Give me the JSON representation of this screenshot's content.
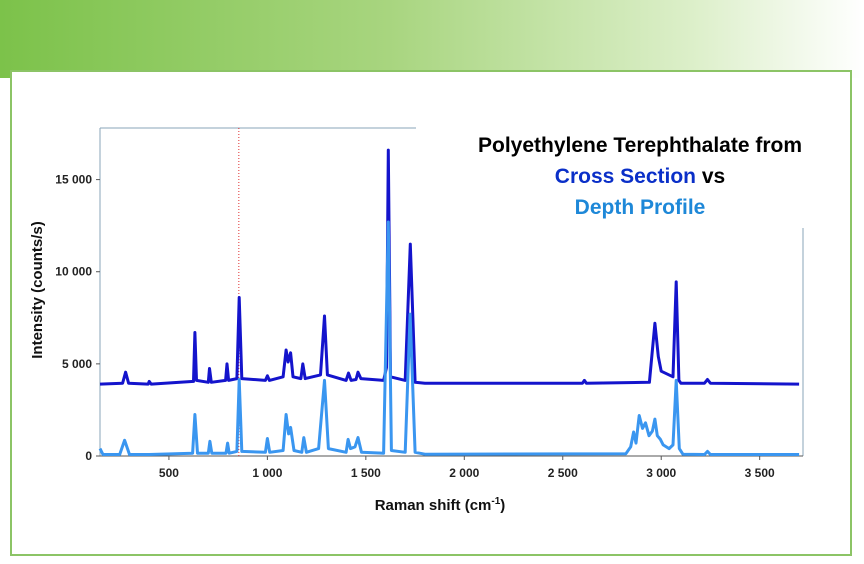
{
  "chart_data": {
    "type": "line",
    "title_line1": "Polyethylene Terephthalate from",
    "title_cross": "Cross Section",
    "title_vs": " vs",
    "title_depth": "Depth Profile",
    "xlabel": "Raman shift (cm",
    "xlabel_sup": "-1",
    "xlabel_end": ")",
    "ylabel": "Intensity (counts/s)",
    "xlim": [
      150,
      3720
    ],
    "ylim": [
      0,
      17800
    ],
    "x_ticks": [
      500,
      1000,
      1500,
      2000,
      2500,
      3000,
      3500
    ],
    "x_tick_labels": [
      "500",
      "1 000",
      "1 500",
      "2 000",
      "2 500",
      "3 000",
      "3 500"
    ],
    "y_ticks": [
      0,
      5000,
      10000,
      15000
    ],
    "y_tick_labels": [
      "0",
      "5 000",
      "10 000",
      "15 000"
    ],
    "marker_line_x": 855,
    "series": [
      {
        "name": "Cross Section",
        "color": "#1414cc",
        "baseline": 3900,
        "points": [
          [
            150,
            3900
          ],
          [
            265,
            3950
          ],
          [
            280,
            4550
          ],
          [
            295,
            3950
          ],
          [
            395,
            3900
          ],
          [
            400,
            4050
          ],
          [
            410,
            3900
          ],
          [
            625,
            4050
          ],
          [
            632,
            6700
          ],
          [
            640,
            4100
          ],
          [
            700,
            4000
          ],
          [
            706,
            4750
          ],
          [
            715,
            4000
          ],
          [
            788,
            4100
          ],
          [
            795,
            5000
          ],
          [
            803,
            4100
          ],
          [
            845,
            4200
          ],
          [
            857,
            8600
          ],
          [
            870,
            4200
          ],
          [
            990,
            4100
          ],
          [
            1000,
            4350
          ],
          [
            1010,
            4100
          ],
          [
            1080,
            4300
          ],
          [
            1095,
            5750
          ],
          [
            1105,
            5100
          ],
          [
            1118,
            5600
          ],
          [
            1130,
            4300
          ],
          [
            1170,
            4200
          ],
          [
            1180,
            5000
          ],
          [
            1192,
            4200
          ],
          [
            1270,
            4400
          ],
          [
            1290,
            7600
          ],
          [
            1305,
            4400
          ],
          [
            1400,
            4100
          ],
          [
            1412,
            4500
          ],
          [
            1425,
            4100
          ],
          [
            1450,
            4150
          ],
          [
            1460,
            4550
          ],
          [
            1475,
            4200
          ],
          [
            1590,
            4100
          ],
          [
            1605,
            4800
          ],
          [
            1614,
            16600
          ],
          [
            1625,
            4300
          ],
          [
            1700,
            4100
          ],
          [
            1726,
            11500
          ],
          [
            1750,
            4000
          ],
          [
            1800,
            3950
          ],
          [
            2600,
            3950
          ],
          [
            2610,
            4100
          ],
          [
            2620,
            3950
          ],
          [
            2940,
            4000
          ],
          [
            2968,
            7200
          ],
          [
            2985,
            5400
          ],
          [
            3000,
            4600
          ],
          [
            3060,
            4300
          ],
          [
            3076,
            9450
          ],
          [
            3090,
            4100
          ],
          [
            3100,
            3950
          ],
          [
            3220,
            3950
          ],
          [
            3235,
            4150
          ],
          [
            3250,
            3950
          ],
          [
            3700,
            3900
          ]
        ]
      },
      {
        "name": "Depth Profile",
        "color": "#3a96f0",
        "baseline": 0,
        "points": [
          [
            150,
            400
          ],
          [
            165,
            80
          ],
          [
            250,
            80
          ],
          [
            275,
            850
          ],
          [
            300,
            80
          ],
          [
            400,
            80
          ],
          [
            620,
            150
          ],
          [
            632,
            2250
          ],
          [
            645,
            150
          ],
          [
            700,
            150
          ],
          [
            708,
            800
          ],
          [
            718,
            150
          ],
          [
            790,
            150
          ],
          [
            798,
            700
          ],
          [
            806,
            150
          ],
          [
            845,
            250
          ],
          [
            857,
            4150
          ],
          [
            870,
            250
          ],
          [
            990,
            200
          ],
          [
            1000,
            950
          ],
          [
            1012,
            200
          ],
          [
            1080,
            300
          ],
          [
            1095,
            2250
          ],
          [
            1108,
            1200
          ],
          [
            1118,
            1550
          ],
          [
            1135,
            300
          ],
          [
            1175,
            200
          ],
          [
            1185,
            1000
          ],
          [
            1198,
            200
          ],
          [
            1260,
            400
          ],
          [
            1290,
            4100
          ],
          [
            1310,
            400
          ],
          [
            1400,
            200
          ],
          [
            1410,
            900
          ],
          [
            1422,
            400
          ],
          [
            1445,
            500
          ],
          [
            1460,
            1000
          ],
          [
            1478,
            200
          ],
          [
            1590,
            150
          ],
          [
            1614,
            12700
          ],
          [
            1630,
            300
          ],
          [
            1700,
            200
          ],
          [
            1725,
            7700
          ],
          [
            1750,
            200
          ],
          [
            1800,
            100
          ],
          [
            2820,
            120
          ],
          [
            2845,
            500
          ],
          [
            2860,
            1300
          ],
          [
            2872,
            700
          ],
          [
            2888,
            2200
          ],
          [
            2905,
            1500
          ],
          [
            2920,
            1800
          ],
          [
            2938,
            1100
          ],
          [
            2955,
            1350
          ],
          [
            2968,
            2000
          ],
          [
            2980,
            1100
          ],
          [
            2996,
            900
          ],
          [
            3010,
            600
          ],
          [
            3040,
            400
          ],
          [
            3060,
            600
          ],
          [
            3076,
            4100
          ],
          [
            3092,
            400
          ],
          [
            3110,
            100
          ],
          [
            3220,
            80
          ],
          [
            3235,
            250
          ],
          [
            3250,
            80
          ],
          [
            3700,
            80
          ]
        ]
      }
    ]
  }
}
